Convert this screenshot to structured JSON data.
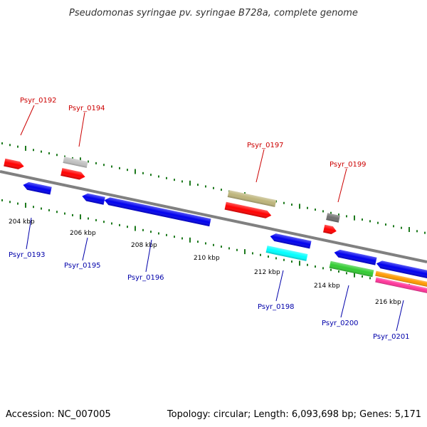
{
  "title": "Pseudomonas syringae pv. syringae B728a, complete genome",
  "footer": {
    "accession": "Accession: NC_007005",
    "summary": "Topology: circular; Length: 6,093,698 bp; Genes: 5,171"
  },
  "ticks": [
    "204 kbp",
    "206 kbp",
    "208 kbp",
    "210 kbp",
    "212 kbp",
    "214 kbp",
    "216 kbp"
  ],
  "colors": {
    "backbone": "#808080",
    "forward_label": "#cc0000",
    "reverse_label": "#0000aa",
    "dots": "#1e7a1e"
  },
  "genes": [
    {
      "label": "Psyr_0192",
      "strand": "forward",
      "color": "#ff0000"
    },
    {
      "label": "Psyr_0193",
      "strand": "reverse",
      "color": "#0000ee"
    },
    {
      "label": "Psyr_0194",
      "strand": "forward",
      "color": "#ff0000"
    },
    {
      "label": "Psyr_0195",
      "strand": "reverse",
      "color": "#0000ee"
    },
    {
      "label": "Psyr_0196",
      "strand": "reverse",
      "color": "#0000ee"
    },
    {
      "label": "Psyr_0197",
      "strand": "forward",
      "color": "#ff0000"
    },
    {
      "label": "Psyr_0198",
      "strand": "reverse",
      "color": "#0000ee"
    },
    {
      "label": "Psyr_0199",
      "strand": "forward",
      "color": "#ff0000"
    },
    {
      "label": "Psyr_0200",
      "strand": "reverse",
      "color": "#0000ee"
    },
    {
      "label": "Psyr_0201",
      "strand": "reverse",
      "color": "#0000ee"
    }
  ],
  "features": [
    {
      "name": "feature-gray",
      "color": "#c0c0c0"
    },
    {
      "name": "feature-khaki",
      "color": "#bdb47a"
    },
    {
      "name": "feature-cyan",
      "color": "#00ffff"
    },
    {
      "name": "feature-dark-gray",
      "color": "#707070"
    },
    {
      "name": "feature-green",
      "color": "#33cc33"
    },
    {
      "name": "feature-orange",
      "color": "#ff9900"
    },
    {
      "name": "feature-pink",
      "color": "#ff3399"
    }
  ]
}
